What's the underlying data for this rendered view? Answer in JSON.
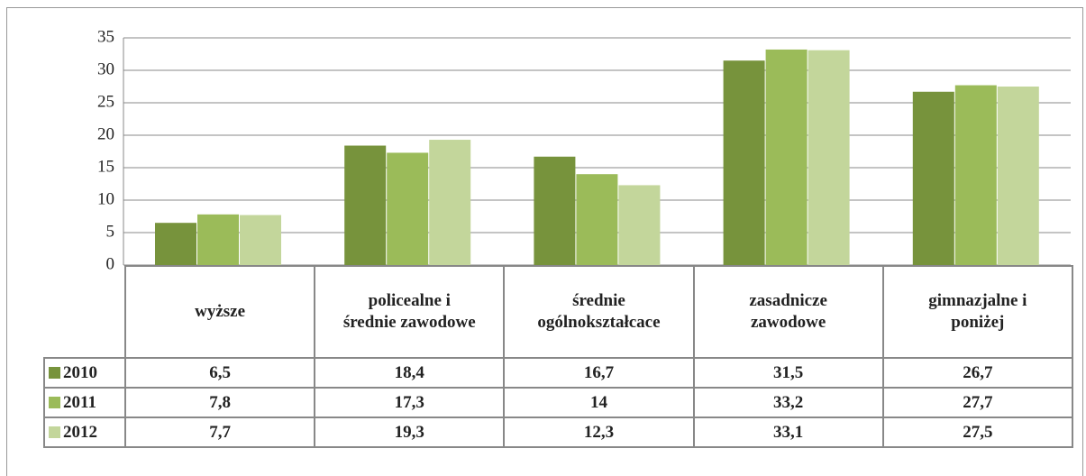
{
  "chart_data": {
    "type": "bar",
    "categories": [
      "wyższe",
      "policealne i średnie zawodowe",
      "średnie ogólnokształcace",
      "zasadnicze zawodowe",
      "gimnazjalne i poniżej"
    ],
    "series": [
      {
        "name": "2010",
        "color": "#77933c",
        "values": [
          6.5,
          18.4,
          16.7,
          31.5,
          26.7
        ],
        "value_labels": [
          "6,5",
          "18,4",
          "16,7",
          "31,5",
          "26,7"
        ]
      },
      {
        "name": "2011",
        "color": "#9bbb59",
        "values": [
          7.8,
          17.3,
          14,
          33.2,
          27.7
        ],
        "value_labels": [
          "7,8",
          "17,3",
          "14",
          "33,2",
          "27,7"
        ]
      },
      {
        "name": "2012",
        "color": "#c3d69b",
        "values": [
          7.7,
          19.3,
          12.3,
          33.1,
          27.5
        ],
        "value_labels": [
          "7,7",
          "19,3",
          "12,3",
          "33,1",
          "27,5"
        ]
      }
    ],
    "ylim": [
      0,
      35
    ],
    "yticks": [
      0,
      5,
      10,
      15,
      20,
      25,
      30,
      35
    ],
    "grid": true
  }
}
